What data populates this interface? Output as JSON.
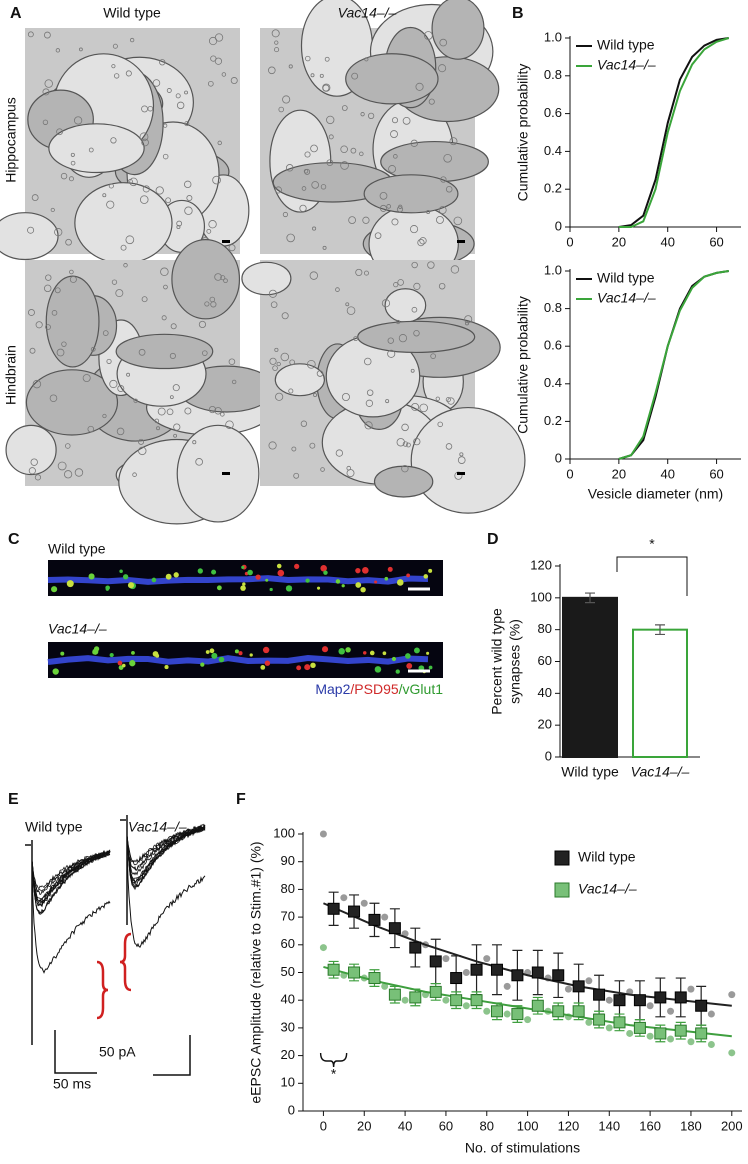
{
  "panel_labels": [
    "A",
    "B",
    "C",
    "D",
    "E",
    "F"
  ],
  "panels": {
    "A": {
      "columns": [
        "Wild type",
        "Vac14–/–"
      ],
      "rows": [
        "Hippocampus",
        "Hindbrain"
      ]
    },
    "C": {
      "rows": [
        "Wild type",
        "Vac14–/–"
      ],
      "stains": [
        {
          "text": "Map2",
          "color": "#2a3aa8"
        },
        {
          "text": "/PSD95",
          "color": "#d02a2a"
        },
        {
          "text": "/vGlut1",
          "color": "#2f9a2f"
        }
      ]
    },
    "E": {
      "columns": [
        "Wild type",
        "Vac14–/–"
      ],
      "scale_labels": [
        "50 pA",
        "50 ms"
      ]
    }
  },
  "chart_data": [
    {
      "type": "line",
      "ylabel": "Cumulative probability",
      "legend": "upper left",
      "x": [
        20,
        25,
        30,
        35,
        40,
        45,
        50,
        55,
        60,
        65
      ],
      "series": [
        {
          "name": "Wild type",
          "color": "#111111",
          "values": [
            0,
            0.01,
            0.06,
            0.25,
            0.55,
            0.78,
            0.9,
            0.96,
            0.99,
            1
          ]
        },
        {
          "name": "Vac14–/–",
          "color": "#3aa53a",
          "values": [
            0,
            0,
            0.03,
            0.2,
            0.5,
            0.72,
            0.86,
            0.94,
            0.98,
            1
          ]
        }
      ],
      "xlim": [
        0,
        70
      ],
      "xticks": [
        0,
        20,
        40,
        60
      ],
      "ylim": [
        0,
        1
      ],
      "yticks": [
        0,
        0.2,
        0.4,
        0.6,
        0.8,
        {
          "value": 1,
          "label": "1.0"
        }
      ]
    },
    {
      "type": "line",
      "ylabel": "Cumulative probability",
      "xlabel": "Vesicle diameter (nm)",
      "legend": "upper left",
      "x": [
        20,
        25,
        30,
        35,
        40,
        45,
        50,
        55,
        60,
        65
      ],
      "series": [
        {
          "name": "Wild type",
          "color": "#111111",
          "values": [
            0,
            0.02,
            0.1,
            0.33,
            0.6,
            0.8,
            0.92,
            0.97,
            0.99,
            1
          ]
        },
        {
          "name": "Vac14–/–",
          "color": "#3aa53a",
          "values": [
            0,
            0.02,
            0.12,
            0.35,
            0.6,
            0.79,
            0.91,
            0.97,
            0.99,
            1
          ]
        }
      ],
      "xlim": [
        0,
        70
      ],
      "xticks": [
        0,
        20,
        40,
        60
      ],
      "ylim": [
        0,
        1
      ],
      "yticks": [
        0,
        0.2,
        0.4,
        0.6,
        0.8,
        {
          "value": 1,
          "label": "1.0"
        }
      ]
    },
    {
      "type": "bar",
      "ylabel": [
        "Percent wild type",
        "synapses (%)"
      ],
      "categories": [
        "Wild type",
        "Vac14–/–"
      ],
      "values": [
        100,
        80
      ],
      "errors": [
        3,
        3
      ],
      "colors": [
        "#1a1a1a",
        "#3aa53a"
      ],
      "filled": [
        true,
        false
      ],
      "annotation": "*",
      "ylim": [
        0,
        120
      ],
      "yticks": [
        0,
        20,
        40,
        60,
        80,
        100,
        120
      ]
    },
    {
      "type": "scatter",
      "ylabel": "eEPSC Amplitude (relative to Stim.#1) (%)",
      "xlabel": "No. of stimulations",
      "legend": "upper right",
      "annotation": "*",
      "series": [
        {
          "name": "Wild type",
          "color": "#222222",
          "raw_color": "#9a9a9a",
          "x": [
            5,
            15,
            25,
            35,
            45,
            55,
            65,
            75,
            85,
            95,
            105,
            115,
            125,
            135,
            145,
            155,
            165,
            175,
            185
          ],
          "values": [
            73,
            72,
            69,
            66,
            59,
            54,
            48,
            51,
            51,
            49,
            50,
            49,
            45,
            42,
            40,
            40,
            41,
            41,
            38
          ],
          "errors": [
            6,
            6,
            6,
            7,
            7,
            8,
            8,
            9,
            9,
            9,
            8,
            8,
            8,
            7,
            7,
            7,
            7,
            7,
            7
          ],
          "fit_x": [
            0,
            25,
            50,
            75,
            100,
            125,
            150,
            175,
            200
          ],
          "fit_values": [
            75,
            67,
            60,
            54,
            49,
            45,
            42,
            40,
            38
          ],
          "raw_x": [
            0,
            10,
            20,
            30,
            40,
            50,
            60,
            70,
            80,
            90,
            100,
            110,
            120,
            130,
            140,
            150,
            160,
            170,
            180,
            190,
            200
          ],
          "raw_values": [
            100,
            77,
            75,
            70,
            64,
            60,
            55,
            50,
            55,
            45,
            50,
            48,
            44,
            47,
            40,
            43,
            38,
            36,
            44,
            35,
            42
          ]
        },
        {
          "name": "Vac14–/–",
          "color": "#3f9f3f",
          "raw_color": "#8cc48c",
          "x": [
            5,
            15,
            25,
            35,
            45,
            55,
            65,
            75,
            85,
            95,
            105,
            115,
            125,
            135,
            145,
            155,
            165,
            175,
            185
          ],
          "values": [
            51,
            50,
            48,
            42,
            41,
            43,
            40,
            40,
            36,
            35,
            38,
            36,
            36,
            33,
            32,
            30,
            28,
            29,
            28
          ],
          "errors": [
            3,
            3,
            3,
            3,
            3,
            3,
            3,
            3,
            3,
            3,
            3,
            3,
            3,
            3,
            3,
            3,
            3,
            3,
            3
          ],
          "fit_x": [
            0,
            25,
            50,
            75,
            100,
            125,
            150,
            175,
            200
          ],
          "fit_values": [
            52,
            47,
            43,
            40,
            37,
            34,
            31,
            29,
            27
          ],
          "raw_x": [
            0,
            10,
            20,
            30,
            40,
            50,
            60,
            70,
            80,
            90,
            100,
            110,
            120,
            130,
            140,
            150,
            160,
            170,
            180,
            190,
            200
          ],
          "raw_values": [
            59,
            49,
            48,
            45,
            40,
            42,
            40,
            38,
            36,
            35,
            33,
            36,
            34,
            32,
            30,
            28,
            27,
            26,
            25,
            24,
            21
          ]
        }
      ],
      "xlim": [
        -10,
        205
      ],
      "xticks": [
        0,
        20,
        40,
        60,
        80,
        100,
        120,
        140,
        160,
        180,
        200
      ],
      "ylim": [
        0,
        100
      ],
      "yticks": [
        0,
        10,
        20,
        30,
        40,
        50,
        60,
        70,
        80,
        90,
        100
      ]
    }
  ]
}
